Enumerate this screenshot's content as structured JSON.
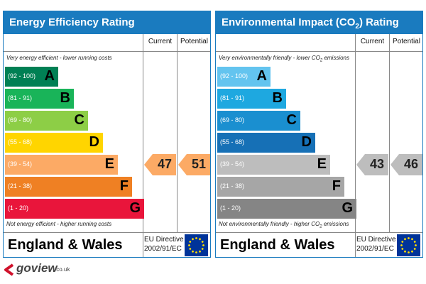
{
  "energy": {
    "title": "Energy Efficiency Rating",
    "col_current": "Current",
    "col_potential": "Potential",
    "top_note": "Very energy efficient - lower running costs",
    "bottom_note": "Not energy efficient - higher running costs",
    "bands": [
      {
        "range": "(92 - 100)",
        "letter": "A",
        "color": "#008054"
      },
      {
        "range": "(81 - 91)",
        "letter": "B",
        "color": "#19b459"
      },
      {
        "range": "(69 - 80)",
        "letter": "C",
        "color": "#8dce46"
      },
      {
        "range": "(55 - 68)",
        "letter": "D",
        "color": "#ffd500"
      },
      {
        "range": "(39 - 54)",
        "letter": "E",
        "color": "#fcaa65"
      },
      {
        "range": "(21 - 38)",
        "letter": "F",
        "color": "#ef8023"
      },
      {
        "range": "(1 - 20)",
        "letter": "G",
        "color": "#e9153b"
      }
    ],
    "current": "47",
    "current_band": 4,
    "current_color": "#fcaa65",
    "potential": "51",
    "potential_band": 4,
    "potential_color": "#fcaa65",
    "country": "England & Wales",
    "directive_line1": "EU Directive",
    "directive_line2": "2002/91/EC"
  },
  "environment": {
    "title_pre": "Environmental Impact (CO",
    "title_sub": "2",
    "title_post": ") Rating",
    "col_current": "Current",
    "col_potential": "Potential",
    "top_note_pre": "Very environmentally friendly - lower CO",
    "top_note_sub": "2",
    "top_note_post": " emissions",
    "bottom_note_pre": "Not environmentally friendly - higher CO",
    "bottom_note_sub": "2",
    "bottom_note_post": " emissions",
    "bands": [
      {
        "range": "(92 - 100)",
        "letter": "A",
        "color": "#63c4ef"
      },
      {
        "range": "(81 - 91)",
        "letter": "B",
        "color": "#1ea8e0"
      },
      {
        "range": "(69 - 80)",
        "letter": "C",
        "color": "#1a8fd0"
      },
      {
        "range": "(55 - 68)",
        "letter": "D",
        "color": "#1670b6"
      },
      {
        "range": "(39 - 54)",
        "letter": "E",
        "color": "#bdbdbd"
      },
      {
        "range": "(21 - 38)",
        "letter": "F",
        "color": "#a6a6a6"
      },
      {
        "range": "(1 - 20)",
        "letter": "G",
        "color": "#858585"
      }
    ],
    "current": "43",
    "current_band": 4,
    "current_color": "#bdbdbd",
    "potential": "46",
    "potential_band": 4,
    "potential_color": "#bdbdbd",
    "country": "England & Wales",
    "directive_line1": "EU Directive",
    "directive_line2": "2002/91/EC"
  },
  "logo": {
    "brand": "goview",
    "tld": ".co.uk",
    "icon": "goview-logo-icon",
    "color": "#d0112b"
  },
  "eu_flag": {
    "icon": "eu-flag-icon",
    "background": "#003399",
    "stars": "#ffdd00"
  }
}
